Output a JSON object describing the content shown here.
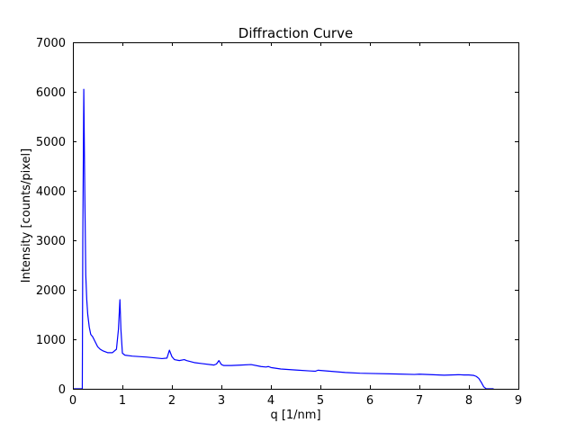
{
  "chart_data": {
    "type": "line",
    "title": "Diffraction Curve",
    "xlabel": "q [1/nm]",
    "ylabel": "Intensity [counts/pixel]",
    "xlim": [
      0,
      9
    ],
    "ylim": [
      0,
      7000
    ],
    "xticks": [
      0,
      1,
      2,
      3,
      4,
      5,
      6,
      7,
      8,
      9
    ],
    "xtick_labels": [
      "0",
      "1",
      "2",
      "3",
      "4",
      "5",
      "6",
      "7",
      "8",
      "9"
    ],
    "yticks": [
      0,
      1000,
      2000,
      3000,
      4000,
      5000,
      6000,
      7000
    ],
    "ytick_labels": [
      "0",
      "1000",
      "2000",
      "3000",
      "4000",
      "5000",
      "6000",
      "7000"
    ],
    "grid": false,
    "series": [
      {
        "name": "diffraction",
        "color": "#0000ff",
        "x": [
          0.0,
          0.19,
          0.2,
          0.22,
          0.24,
          0.26,
          0.28,
          0.3,
          0.33,
          0.36,
          0.4,
          0.45,
          0.5,
          0.55,
          0.6,
          0.7,
          0.8,
          0.88,
          0.92,
          0.95,
          0.97,
          1.0,
          1.05,
          1.2,
          1.5,
          1.8,
          1.9,
          1.95,
          2.0,
          2.05,
          2.15,
          2.25,
          2.3,
          2.45,
          2.6,
          2.85,
          2.9,
          2.95,
          3.0,
          3.05,
          3.2,
          3.4,
          3.6,
          3.8,
          3.9,
          3.95,
          4.0,
          4.2,
          4.5,
          4.8,
          4.9,
          4.95,
          5.5,
          5.8,
          6.0,
          6.5,
          6.9,
          7.0,
          7.5,
          7.8,
          7.9,
          8.0,
          8.1,
          8.15,
          8.2,
          8.25,
          8.3,
          8.35,
          8.4,
          8.5
        ],
        "y": [
          0,
          0,
          3000,
          6050,
          4000,
          2300,
          1800,
          1500,
          1250,
          1100,
          1050,
          950,
          850,
          800,
          770,
          730,
          730,
          800,
          1200,
          1800,
          1200,
          720,
          680,
          660,
          640,
          610,
          620,
          780,
          650,
          590,
          570,
          590,
          570,
          530,
          510,
          480,
          500,
          570,
          490,
          470,
          470,
          480,
          490,
          450,
          440,
          450,
          430,
          400,
          380,
          360,
          355,
          375,
          330,
          315,
          310,
          300,
          290,
          295,
          275,
          285,
          280,
          280,
          270,
          250,
          210,
          130,
          40,
          0,
          0,
          0
        ]
      }
    ]
  }
}
